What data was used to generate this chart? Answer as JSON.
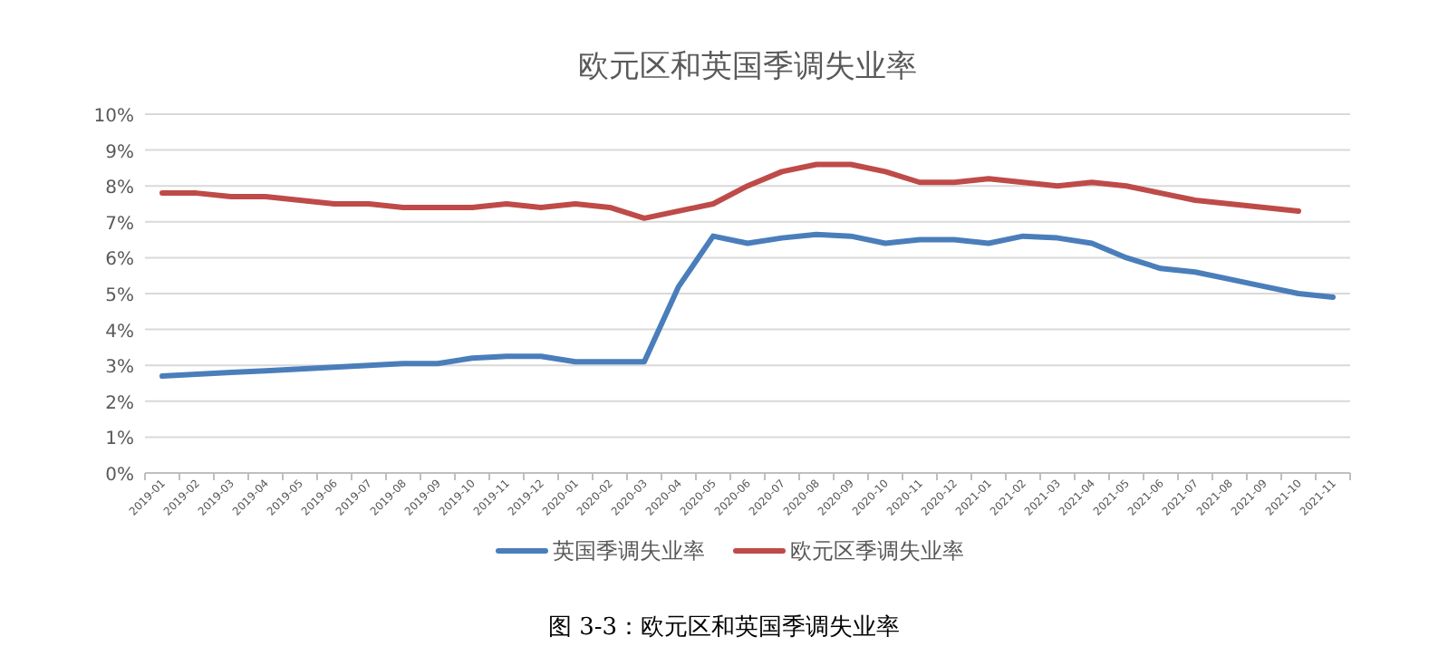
{
  "chart_data": {
    "type": "line",
    "title": "欧元区和英国季调失业率",
    "categories": [
      "2019-01",
      "2019-02",
      "2019-03",
      "2019-04",
      "2019-05",
      "2019-06",
      "2019-07",
      "2019-08",
      "2019-09",
      "2019-10",
      "2019-11",
      "2019-12",
      "2020-01",
      "2020-02",
      "2020-03",
      "2020-04",
      "2020-05",
      "2020-06",
      "2020-07",
      "2020-08",
      "2020-09",
      "2020-10",
      "2020-11",
      "2020-12",
      "2021-01",
      "2021-02",
      "2021-03",
      "2021-04",
      "2021-05",
      "2021-06",
      "2021-07",
      "2021-08",
      "2021-09",
      "2021-10",
      "2021-11"
    ],
    "series": [
      {
        "name": "英国季调失业率",
        "color": "#4a7ebb",
        "values": [
          2.7,
          2.75,
          2.8,
          2.85,
          2.9,
          2.95,
          3.0,
          3.05,
          3.05,
          3.2,
          3.25,
          3.25,
          3.1,
          3.1,
          3.1,
          5.2,
          6.6,
          6.4,
          6.55,
          6.65,
          6.6,
          6.4,
          6.5,
          6.5,
          6.4,
          6.6,
          6.55,
          6.4,
          6.0,
          5.7,
          5.6,
          5.4,
          5.2,
          5.0,
          4.9
        ]
      },
      {
        "name": "欧元区季调失业率",
        "color": "#be4b48",
        "values": [
          7.8,
          7.8,
          7.7,
          7.7,
          7.6,
          7.5,
          7.5,
          7.4,
          7.4,
          7.4,
          7.5,
          7.4,
          7.5,
          7.4,
          7.1,
          7.3,
          7.5,
          8.0,
          8.4,
          8.6,
          8.6,
          8.4,
          8.1,
          8.1,
          8.2,
          8.1,
          8.0,
          8.1,
          8.0,
          7.8,
          7.6,
          7.5,
          7.4,
          7.3,
          null
        ]
      }
    ],
    "ylim": [
      0,
      10
    ],
    "yticks": [
      {
        "value": 0,
        "label": "0%"
      },
      {
        "value": 1,
        "label": "1%"
      },
      {
        "value": 2,
        "label": "2%"
      },
      {
        "value": 3,
        "label": "3%"
      },
      {
        "value": 4,
        "label": "4%"
      },
      {
        "value": 5,
        "label": "5%"
      },
      {
        "value": 6,
        "label": "6%"
      },
      {
        "value": 7,
        "label": "7%"
      },
      {
        "value": 8,
        "label": "8%"
      },
      {
        "value": 9,
        "label": "9%"
      },
      {
        "value": 10,
        "label": "10%"
      }
    ],
    "grid": "y",
    "legend": "bottom",
    "marker": "none",
    "line_style": "solid",
    "annotations": [
      "图 3-3：欧元区和英国季调失业率"
    ]
  }
}
